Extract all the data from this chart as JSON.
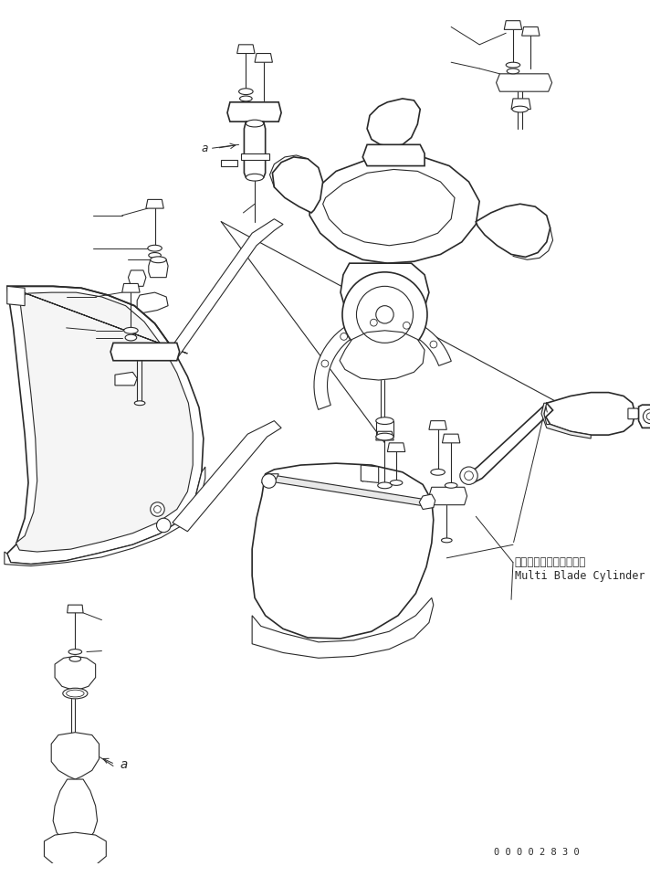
{
  "bg_color": "#ffffff",
  "line_color": "#2a2a2a",
  "text_color": "#2a2a2a",
  "label_japanese": "マルチブレードシリンダ",
  "label_english": "Multi Blade Cylinder",
  "label_a_top": "a",
  "label_a_bottom": "a",
  "part_number": "0 0 0 0 2 8 3 0",
  "figsize": [
    7.35,
    9.6
  ],
  "dpi": 100
}
